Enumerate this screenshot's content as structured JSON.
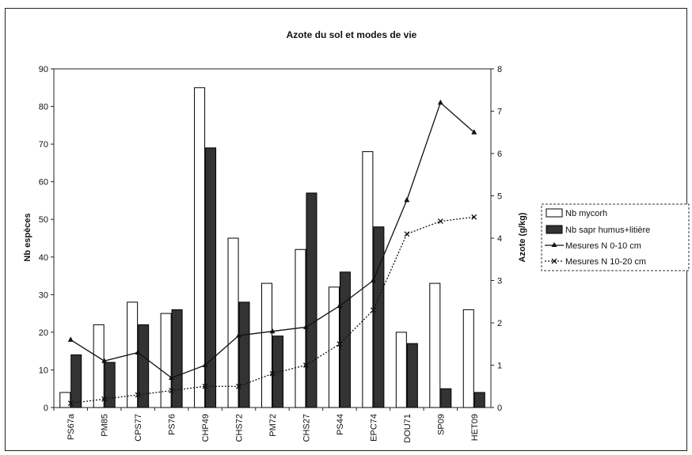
{
  "chart_data": {
    "type": "bar",
    "title": "Azote du sol et modes de vie",
    "ylabel": "Nb espèces",
    "y2label": "Azote (g/kg)",
    "xlabel": "",
    "ylim": [
      0,
      90
    ],
    "y2lim": [
      0,
      8
    ],
    "yticks": [
      0,
      10,
      20,
      30,
      40,
      50,
      60,
      70,
      80,
      90
    ],
    "y2ticks": [
      0,
      1,
      2,
      3,
      4,
      5,
      6,
      7,
      8
    ],
    "grid": false,
    "legend_position": "right",
    "categories": [
      "PS67a",
      "PM85",
      "CPS77",
      "PS76",
      "CHP49",
      "CHS72",
      "PM72",
      "CHS27",
      "PS44",
      "EPC74",
      "DOU71",
      "SP09",
      "HET09"
    ],
    "series": [
      {
        "name": "Nb mycorh",
        "type": "bar",
        "axis": "left",
        "color": "#ffffff",
        "values": [
          4,
          22,
          28,
          25,
          85,
          45,
          33,
          42,
          32,
          68,
          20,
          33,
          26
        ]
      },
      {
        "name": "Nb sapr humus+litière",
        "type": "bar",
        "axis": "left",
        "color": "#333333",
        "values": [
          14,
          12,
          22,
          26,
          69,
          28,
          19,
          57,
          36,
          48,
          17,
          5,
          4
        ]
      },
      {
        "name": "Mesures N 0-10 cm",
        "type": "line",
        "axis": "right",
        "color": "#111111",
        "marker": "triangle",
        "style": "solid",
        "values": [
          1.6,
          1.1,
          1.3,
          0.7,
          1.0,
          1.7,
          1.8,
          1.9,
          2.4,
          3.0,
          4.9,
          7.2,
          6.5
        ]
      },
      {
        "name": "Mesures N 10-20 cm",
        "type": "line",
        "axis": "right",
        "color": "#111111",
        "marker": "x",
        "style": "dotted",
        "values": [
          0.1,
          0.2,
          0.3,
          0.4,
          0.5,
          0.5,
          0.8,
          1.0,
          1.5,
          2.3,
          4.1,
          4.4,
          4.5
        ]
      }
    ]
  }
}
